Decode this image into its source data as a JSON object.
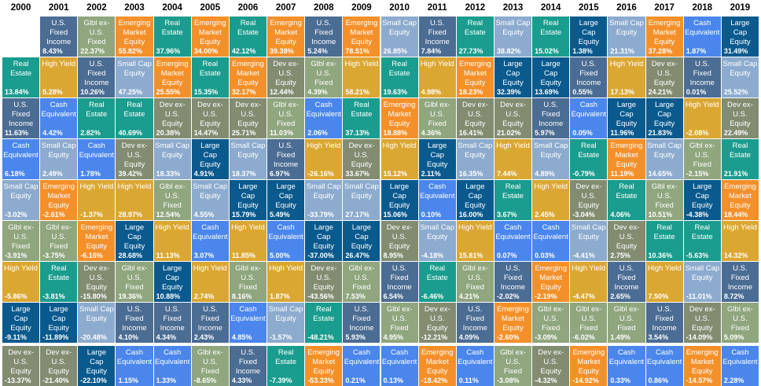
{
  "chart_data": {
    "type": "table",
    "title": "",
    "years": [
      "2000",
      "2001",
      "2002",
      "2003",
      "2004",
      "2005",
      "2006",
      "2007",
      "2008",
      "2009",
      "2010",
      "2011",
      "2012",
      "2013",
      "2014",
      "2015",
      "2016",
      "2017",
      "2018",
      "2019"
    ],
    "asset_classes": {
      "RE": {
        "label": "Real\nEstate",
        "color": "#1a9c8e"
      },
      "FI": {
        "label": "U.S.\nFixed\nIncome",
        "color": "#4b6c93"
      },
      "GF": {
        "label": "Glbl ex-\nU.S.\nFixed",
        "color": "#8fa67e"
      },
      "EM": {
        "label": "Emerging\nMarket\nEquity",
        "color": "#f4902a"
      },
      "SC": {
        "label": "Small Cap\nEquity",
        "color": "#8cabce"
      },
      "LC": {
        "label": "Large\nCap\nEquity",
        "color": "#0a5a8e"
      },
      "HY": {
        "label": "High Yield",
        "color": "#dba733"
      },
      "CE": {
        "label": "Cash\nEquivalent",
        "color": "#4a86ec"
      },
      "DX": {
        "label": "Dev ex-\nU.S.\nEquity",
        "color": "#828c71"
      }
    },
    "columns": [
      [
        [
          "RE",
          "13.84%"
        ],
        [
          "FI",
          "11.63%"
        ],
        [
          "CE",
          "6.18%"
        ],
        [
          "SC",
          "-3.02%"
        ],
        [
          "GF",
          "-3.91%"
        ],
        [
          "HY",
          "-5.86%"
        ],
        [
          "LC",
          "-9.11%"
        ],
        [
          "DX",
          "-13.37%"
        ]
      ],
      [
        [
          "FI",
          "8.43%"
        ],
        [
          "HY",
          "5.28%"
        ],
        [
          "CE",
          "4.42%"
        ],
        [
          "SC",
          "2.49%"
        ],
        [
          "EM",
          "-2.61%"
        ],
        [
          "GF",
          "-3.75%"
        ],
        [
          "RE",
          "-3.81%"
        ],
        [
          "LC",
          "-11.89%"
        ],
        [
          "DX",
          "-21.40%"
        ]
      ],
      [
        [
          "GF",
          "22.37%"
        ],
        [
          "FI",
          "10.26%"
        ],
        [
          "RE",
          "2.82%"
        ],
        [
          "CE",
          "1.78%"
        ],
        [
          "HY",
          "-1.37%"
        ],
        [
          "EM",
          "-6.16%"
        ],
        [
          "DX",
          "-15.80%"
        ],
        [
          "SC",
          "-20.48%"
        ],
        [
          "LC",
          "-22.10%"
        ]
      ],
      [
        [
          "EM",
          "55.82%"
        ],
        [
          "SC",
          "47.25%"
        ],
        [
          "RE",
          "40.69%"
        ],
        [
          "DX",
          "39.42%"
        ],
        [
          "HY",
          "28.97%"
        ],
        [
          "LC",
          "28.68%"
        ],
        [
          "GF",
          "19.36%"
        ],
        [
          "FI",
          "4.10%"
        ],
        [
          "CE",
          "1.15%"
        ]
      ],
      [
        [
          "RE",
          "37.96%"
        ],
        [
          "EM",
          "25.55%"
        ],
        [
          "DX",
          "20.38%"
        ],
        [
          "SC",
          "18.33%"
        ],
        [
          "GF",
          "12.54%"
        ],
        [
          "HY",
          "11.13%"
        ],
        [
          "LC",
          "10.88%"
        ],
        [
          "FI",
          "4.34%"
        ],
        [
          "CE",
          "1.33%"
        ]
      ],
      [
        [
          "EM",
          "34.00%"
        ],
        [
          "RE",
          "15.35%"
        ],
        [
          "DX",
          "14.47%"
        ],
        [
          "LC",
          "4.91%"
        ],
        [
          "SC",
          "4.55%"
        ],
        [
          "CE",
          "3.07%"
        ],
        [
          "HY",
          "2.74%"
        ],
        [
          "FI",
          "2.43%"
        ],
        [
          "GF",
          "-8.65%"
        ]
      ],
      [
        [
          "RE",
          "42.12%"
        ],
        [
          "EM",
          "32.17%"
        ],
        [
          "DX",
          "25.71%"
        ],
        [
          "SC",
          "18.37%"
        ],
        [
          "LC",
          "15.79%"
        ],
        [
          "HY",
          "11.85%"
        ],
        [
          "GF",
          "8.16%"
        ],
        [
          "CE",
          "4.85%"
        ],
        [
          "FI",
          "4.33%"
        ]
      ],
      [
        [
          "EM",
          "39.38%"
        ],
        [
          "DX",
          "12.44%"
        ],
        [
          "GF",
          "11.03%"
        ],
        [
          "FI",
          "6.97%"
        ],
        [
          "LC",
          "5.49%"
        ],
        [
          "CE",
          "5.00%"
        ],
        [
          "HY",
          "1.87%"
        ],
        [
          "SC",
          "-1.57%"
        ],
        [
          "RE",
          "-7.39%"
        ]
      ],
      [
        [
          "FI",
          "5.24%"
        ],
        [
          "GF",
          "4.39%"
        ],
        [
          "CE",
          "2.06%"
        ],
        [
          "HY",
          "-26.16%"
        ],
        [
          "SC",
          "-33.79%"
        ],
        [
          "LC",
          "-37.00%"
        ],
        [
          "DX",
          "-43.56%"
        ],
        [
          "RE",
          "-48.21%"
        ],
        [
          "EM",
          "-53.33%"
        ]
      ],
      [
        [
          "EM",
          "78.51%"
        ],
        [
          "HY",
          "58.21%"
        ],
        [
          "RE",
          "37.13%"
        ],
        [
          "DX",
          "33.67%"
        ],
        [
          "SC",
          "27.17%"
        ],
        [
          "LC",
          "26.47%"
        ],
        [
          "GF",
          "7.53%"
        ],
        [
          "FI",
          "5.93%"
        ],
        [
          "CE",
          "0.21%"
        ]
      ],
      [
        [
          "SC",
          "26.85%"
        ],
        [
          "RE",
          "19.63%"
        ],
        [
          "EM",
          "18.88%"
        ],
        [
          "HY",
          "15.12%"
        ],
        [
          "LC",
          "15.06%"
        ],
        [
          "DX",
          "8.95%"
        ],
        [
          "FI",
          "6.54%"
        ],
        [
          "GF",
          "4.95%"
        ],
        [
          "CE",
          "0.13%"
        ]
      ],
      [
        [
          "FI",
          "7.84%"
        ],
        [
          "HY",
          "4.98%"
        ],
        [
          "GF",
          "4.36%"
        ],
        [
          "LC",
          "2.11%"
        ],
        [
          "CE",
          "0.10%"
        ],
        [
          "SC",
          "-4.18%"
        ],
        [
          "RE",
          "-6.46%"
        ],
        [
          "DX",
          "-12.21%"
        ],
        [
          "EM",
          "-18.42%"
        ]
      ],
      [
        [
          "RE",
          "27.73%"
        ],
        [
          "EM",
          "18.23%"
        ],
        [
          "DX",
          "16.41%"
        ],
        [
          "SC",
          "16.35%"
        ],
        [
          "LC",
          "16.00%"
        ],
        [
          "HY",
          "15.81%"
        ],
        [
          "GF",
          "4.21%"
        ],
        [
          "FI",
          "4.09%"
        ],
        [
          "CE",
          "0.11%"
        ]
      ],
      [
        [
          "SC",
          "38.82%"
        ],
        [
          "LC",
          "32.39%"
        ],
        [
          "DX",
          "21.02%"
        ],
        [
          "HY",
          "7.44%"
        ],
        [
          "RE",
          "3.67%"
        ],
        [
          "CE",
          "0.07%"
        ],
        [
          "FI",
          "-2.02%"
        ],
        [
          "EM",
          "-2.60%"
        ],
        [
          "GF",
          "-3.08%"
        ]
      ],
      [
        [
          "RE",
          "15.02%"
        ],
        [
          "LC",
          "13.69%"
        ],
        [
          "FI",
          "5.97%"
        ],
        [
          "SC",
          "4.89%"
        ],
        [
          "HY",
          "2.45%"
        ],
        [
          "CE",
          "0.03%"
        ],
        [
          "EM",
          "-2.19%"
        ],
        [
          "GF",
          "-3.09%"
        ],
        [
          "DX",
          "-4.32%"
        ]
      ],
      [
        [
          "LC",
          "1.38%"
        ],
        [
          "FI",
          "0.55%"
        ],
        [
          "CE",
          "0.05%"
        ],
        [
          "RE",
          "-0.79%"
        ],
        [
          "DX",
          "-3.04%"
        ],
        [
          "SC",
          "-4.41%"
        ],
        [
          "HY",
          "-4.47%"
        ],
        [
          "GF",
          "-6.02%"
        ],
        [
          "EM",
          "-14.92%"
        ]
      ],
      [
        [
          "SC",
          "21.31%"
        ],
        [
          "HY",
          "17.13%"
        ],
        [
          "LC",
          "11.96%"
        ],
        [
          "EM",
          "11.19%"
        ],
        [
          "RE",
          "4.06%"
        ],
        [
          "DX",
          "2.75%"
        ],
        [
          "FI",
          "2.65%"
        ],
        [
          "GF",
          "1.49%"
        ],
        [
          "CE",
          "0.33%"
        ]
      ],
      [
        [
          "EM",
          "37.28%"
        ],
        [
          "DX",
          "24.21%"
        ],
        [
          "LC",
          "21.83%"
        ],
        [
          "SC",
          "14.65%"
        ],
        [
          "GF",
          "10.51%"
        ],
        [
          "RE",
          "10.36%"
        ],
        [
          "HY",
          "7.50%"
        ],
        [
          "FI",
          "3.54%"
        ],
        [
          "CE",
          "0.86%"
        ]
      ],
      [
        [
          "CE",
          "1.87%"
        ],
        [
          "FI",
          "0.01%"
        ],
        [
          "HY",
          "-2.08%"
        ],
        [
          "GF",
          "-2.15%"
        ],
        [
          "LC",
          "-4.38%"
        ],
        [
          "RE",
          "-5.63%"
        ],
        [
          "SC",
          "-11.01%"
        ],
        [
          "DX",
          "-14.09%"
        ],
        [
          "EM",
          "-14.57%"
        ]
      ],
      [
        [
          "LC",
          "31.49%"
        ],
        [
          "SC",
          "25.52%"
        ],
        [
          "DX",
          "22.49%"
        ],
        [
          "RE",
          "21.91%"
        ],
        [
          "EM",
          "18.44%"
        ],
        [
          "HY",
          "14.32%"
        ],
        [
          "FI",
          "8.72%"
        ],
        [
          "GF",
          "5.09%"
        ],
        [
          "CE",
          "2.28%"
        ]
      ]
    ]
  }
}
